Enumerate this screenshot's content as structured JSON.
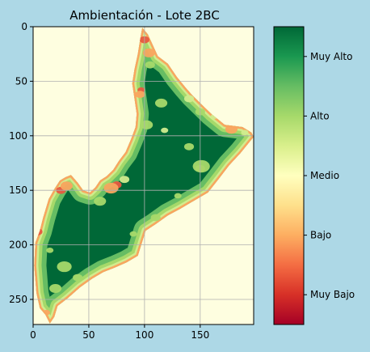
{
  "chart_data": {
    "type": "heatmap",
    "title": "Ambientación - Lote 2BC",
    "xlabel": "",
    "ylabel": "",
    "x_ticks": [
      0,
      50,
      100,
      150
    ],
    "y_ticks": [
      0,
      50,
      100,
      150,
      200,
      250
    ],
    "xlim": [
      0,
      198
    ],
    "ylim": [
      273,
      0
    ],
    "grid": true,
    "colormap": "RdYlGn",
    "colorbar": {
      "labels": [
        "Muy Bajo",
        "Bajo",
        "Medio",
        "Alto",
        "Muy Alto"
      ],
      "values": [
        1,
        2,
        3,
        4,
        5
      ],
      "range": [
        0.5,
        5.5
      ]
    },
    "class_colors": {
      "background": "#fefee0",
      "muy_bajo": "#e75840",
      "bajo": "#f9a55f",
      "alto": "#a6d96a",
      "alto_claro": "#d0ec8e",
      "muy_alto": "#006837",
      "alto_verde": "#66bd63"
    },
    "field_polygon": [
      [
        98,
        1
      ],
      [
        103,
        7
      ],
      [
        112,
        27
      ],
      [
        121,
        34
      ],
      [
        129,
        46
      ],
      [
        137,
        56
      ],
      [
        143,
        63
      ],
      [
        151,
        71
      ],
      [
        160,
        80
      ],
      [
        172,
        90
      ],
      [
        188,
        92
      ],
      [
        196,
        97
      ],
      [
        198,
        101
      ],
      [
        186,
        116
      ],
      [
        176,
        127
      ],
      [
        167,
        139
      ],
      [
        157,
        152
      ],
      [
        142,
        161
      ],
      [
        132,
        167
      ],
      [
        121,
        173
      ],
      [
        110,
        181
      ],
      [
        101,
        187
      ],
      [
        98,
        197
      ],
      [
        94,
        210
      ],
      [
        84,
        216
      ],
      [
        73,
        221
      ],
      [
        63,
        225
      ],
      [
        53,
        231
      ],
      [
        42,
        239
      ],
      [
        31,
        249
      ],
      [
        22,
        256
      ],
      [
        19,
        266
      ],
      [
        15,
        272
      ],
      [
        11,
        264
      ],
      [
        6,
        258
      ],
      [
        3,
        244
      ],
      [
        2,
        232
      ],
      [
        1,
        219
      ],
      [
        2,
        198
      ],
      [
        6,
        187
      ],
      [
        9,
        175
      ],
      [
        14,
        158
      ],
      [
        19,
        149
      ],
      [
        24,
        141
      ],
      [
        29,
        138
      ],
      [
        34,
        136
      ],
      [
        40,
        143
      ],
      [
        45,
        150
      ],
      [
        51,
        152
      ],
      [
        56,
        147
      ],
      [
        60,
        141
      ],
      [
        66,
        137
      ],
      [
        72,
        131
      ],
      [
        77,
        123
      ],
      [
        83,
        115
      ],
      [
        88,
        103
      ],
      [
        92,
        92
      ],
      [
        93,
        80
      ],
      [
        91,
        66
      ],
      [
        89,
        52
      ],
      [
        91,
        39
      ],
      [
        94,
        25
      ],
      [
        96,
        12
      ]
    ]
  }
}
